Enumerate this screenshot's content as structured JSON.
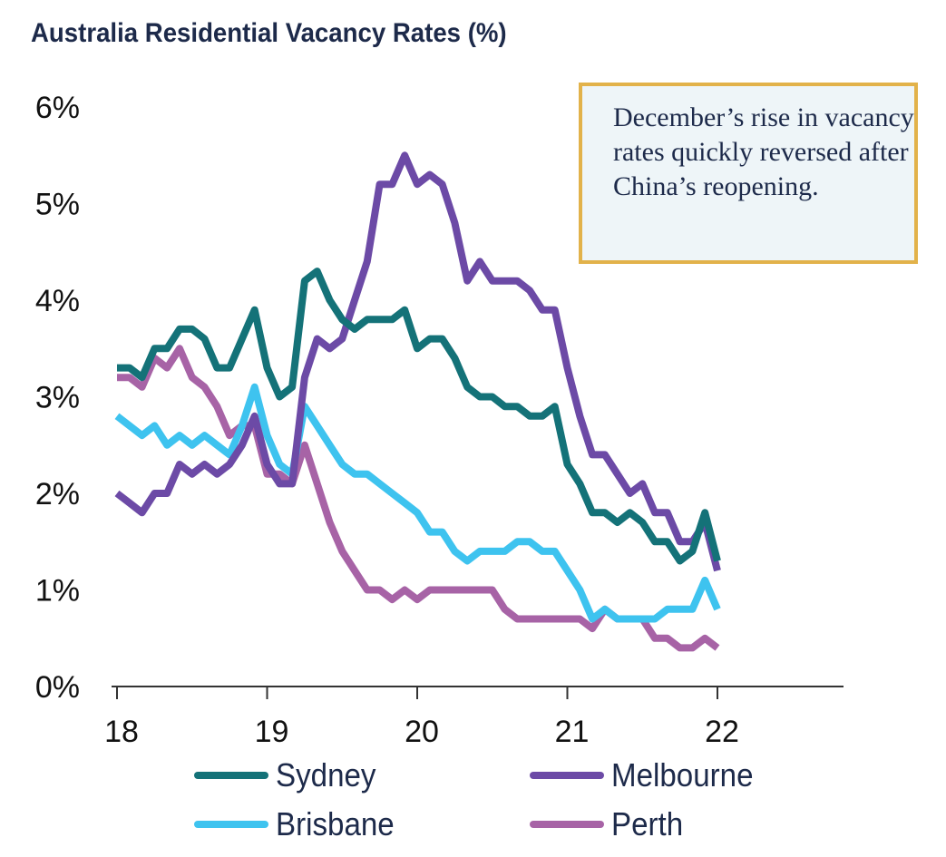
{
  "chart_data": {
    "type": "line",
    "title": "Australia Residential Vacancy Rates (%)",
    "annotation": "December’s rise in vacancy rates quickly reversed after China’s reopening.",
    "x_tick_labels": [
      "18",
      "19",
      "20",
      "21",
      "22"
    ],
    "y_tick_labels": [
      "0%",
      "1%",
      "2%",
      "3%",
      "4%",
      "5%",
      "6%"
    ],
    "ylim": [
      0,
      6
    ],
    "xlim": [
      0,
      48
    ],
    "x_start": "2018-01",
    "x_step": "month",
    "x": [
      0,
      1,
      2,
      3,
      4,
      5,
      6,
      7,
      8,
      9,
      10,
      11,
      12,
      13,
      14,
      15,
      16,
      17,
      18,
      19,
      20,
      21,
      22,
      23,
      24,
      25,
      26,
      27,
      28,
      29,
      30,
      31,
      32,
      33,
      34,
      35,
      36,
      37,
      38,
      39,
      40,
      41,
      42,
      43,
      44,
      45,
      46,
      47,
      48
    ],
    "grid": false,
    "legend_position": "bottom",
    "series": [
      {
        "name": "Sydney",
        "color": "#147278",
        "values": [
          3.3,
          3.3,
          3.2,
          3.5,
          3.5,
          3.7,
          3.7,
          3.6,
          3.3,
          3.3,
          3.6,
          3.9,
          3.3,
          3.0,
          3.1,
          4.2,
          4.3,
          4.0,
          3.8,
          3.7,
          3.8,
          3.8,
          3.8,
          3.9,
          3.5,
          3.6,
          3.6,
          3.4,
          3.1,
          3.0,
          3.0,
          2.9,
          2.9,
          2.8,
          2.8,
          2.9,
          2.3,
          2.1,
          1.8,
          1.8,
          1.7,
          1.8,
          1.7,
          1.5,
          1.5,
          1.3,
          1.4,
          1.8,
          1.3
        ]
      },
      {
        "name": "Melbourne",
        "color": "#6c4aa6",
        "values": [
          2.0,
          1.9,
          1.8,
          2.0,
          2.0,
          2.3,
          2.2,
          2.3,
          2.2,
          2.3,
          2.5,
          2.8,
          2.3,
          2.1,
          2.1,
          3.2,
          3.6,
          3.5,
          3.6,
          4.0,
          4.4,
          5.2,
          5.2,
          5.5,
          5.2,
          5.3,
          5.2,
          4.8,
          4.2,
          4.4,
          4.2,
          4.2,
          4.2,
          4.1,
          3.9,
          3.9,
          3.3,
          2.8,
          2.4,
          2.4,
          2.2,
          2.0,
          2.1,
          1.8,
          1.8,
          1.5,
          1.5,
          1.7,
          1.2
        ]
      },
      {
        "name": "Brisbane",
        "color": "#3ec3ef",
        "values": [
          2.8,
          2.7,
          2.6,
          2.7,
          2.5,
          2.6,
          2.5,
          2.6,
          2.5,
          2.4,
          2.7,
          3.1,
          2.6,
          2.3,
          2.2,
          2.9,
          2.7,
          2.5,
          2.3,
          2.2,
          2.2,
          2.1,
          2.0,
          1.9,
          1.8,
          1.6,
          1.6,
          1.4,
          1.3,
          1.4,
          1.4,
          1.4,
          1.5,
          1.5,
          1.4,
          1.4,
          1.2,
          1.0,
          0.7,
          0.8,
          0.7,
          0.7,
          0.7,
          0.7,
          0.8,
          0.8,
          0.8,
          1.1,
          0.8
        ]
      },
      {
        "name": "Perth",
        "color": "#a763a6",
        "values": [
          3.2,
          3.2,
          3.1,
          3.4,
          3.3,
          3.5,
          3.2,
          3.1,
          2.9,
          2.6,
          2.7,
          2.7,
          2.2,
          2.2,
          2.1,
          2.5,
          2.1,
          1.7,
          1.4,
          1.2,
          1.0,
          1.0,
          0.9,
          1.0,
          0.9,
          1.0,
          1.0,
          1.0,
          1.0,
          1.0,
          1.0,
          0.8,
          0.7,
          0.7,
          0.7,
          0.7,
          0.7,
          0.7,
          0.6,
          0.8,
          0.7,
          0.7,
          0.7,
          0.5,
          0.5,
          0.4,
          0.4,
          0.5,
          0.4
        ]
      }
    ]
  }
}
